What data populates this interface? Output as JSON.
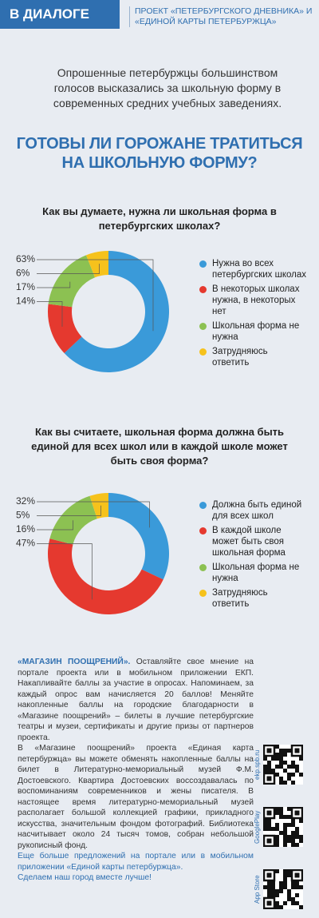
{
  "header": {
    "badge": "В ДИАЛОГЕ",
    "project": "ПРОЕКТ «ПЕТЕРБУРГСКОГО ДНЕВНИКА» И «ЕДИНОЙ КАРТЫ ПЕТЕРБУРЖЦА»"
  },
  "intro": "Опрошенные петербуржцы большинством голосов высказались за школьную форму в современных средних учебных заведениях.",
  "headline": "ГОТОВЫ ЛИ ГОРОЖАНЕ ТРАТИТЬСЯ НА ШКОЛЬНУЮ ФОРМУ?",
  "chart_data": [
    {
      "type": "pie",
      "title": "Как вы думаете, нужна ли школьная форма в петербургских школах?",
      "categories": [
        "Нужна во всех петербургских школах",
        "В некоторых школах нужна, в некоторых нет",
        "Школьная форма не нужна",
        "Затрудняюсь ответить"
      ],
      "values": [
        63,
        14,
        17,
        6
      ],
      "value_labels": [
        "63%",
        "14%",
        "17%",
        "6%"
      ],
      "colors": [
        "#3a9ad9",
        "#e5392f",
        "#8cc152",
        "#f6c21c"
      ]
    },
    {
      "type": "pie",
      "title": "Как вы считаете, школьная форма должна быть единой для всех школ или в каждой школе может быть своя форма?",
      "categories": [
        "Должна быть единой для всех школ",
        "В каждой школе может быть своя школьная форма",
        "Школьная форма не нужна",
        "Затрудняюсь ответить"
      ],
      "values": [
        32,
        47,
        16,
        5
      ],
      "value_labels": [
        "32%",
        "47%",
        "16%",
        "5%"
      ],
      "colors": [
        "#3a9ad9",
        "#e5392f",
        "#8cc152",
        "#f6c21c"
      ]
    }
  ],
  "article": {
    "lead": "«МАГАЗИН ПООЩРЕНИЙ».",
    "paragraphs": [
      "Оставляйте свое мнение на портале проекта или в мобильном приложении ЕКП. Накапливайте баллы за участие в опросах. Напоминаем, за каждый опрос вам начисляется 20 баллов! Меняйте накопленные баллы на городские благодарности в «Магазине поощрений» – билеты в лучшие петербургские театры и музеи, сертификаты и другие призы от партнеров проекта.",
      "В «Магазине поощрений» проекта «Единая карта петербуржца» вы можете обменять накопленные баллы на билет в Литературно-мемориальный музей Ф.М. Достоевского. Квартира Достоевских воссоздавалась по воспоминаниям современников и жены писателя. В настоящее время литературно-мемориальный музей располагает большой коллекцией графики, прикладного искусства, значительным фондом фотографий. Библиотека насчитывает около 24 тысяч томов, собран небольшой рукописный фонд."
    ],
    "closing": [
      "Еще больше предложений на портале или в мобильном приложении «Единой карты петербуржца».",
      "Сделаем наш город вместе лучше!"
    ]
  },
  "qr_labels": [
    "ekp.spb.ru",
    "GooglePlay",
    "App Store"
  ]
}
